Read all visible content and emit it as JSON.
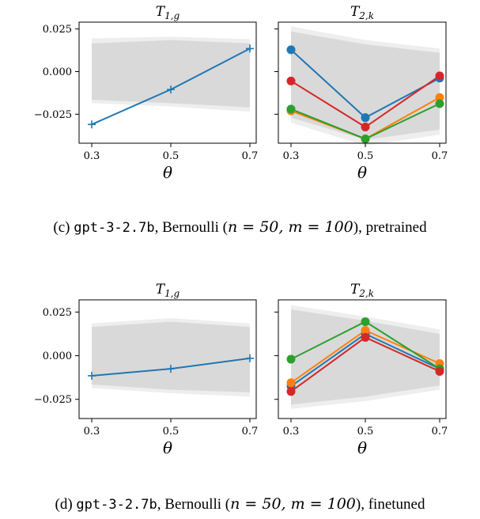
{
  "chart_data": [
    {
      "type": "line",
      "title": {
        "base": "T",
        "sub": "1,g"
      },
      "xlabel": "θ",
      "x": [
        0.3,
        0.5,
        0.7
      ],
      "xticks": [
        "0.3",
        "0.5",
        "0.7"
      ],
      "yticks": [
        0.025,
        0.0,
        -0.025
      ],
      "ytick_labels": [
        "0.025",
        "0.000",
        "−0.025"
      ],
      "ylim": [
        -0.042,
        0.029
      ],
      "y_axis_labels_visible": true,
      "band_outer": {
        "upper": [
          0.0195,
          0.0205,
          0.019
        ],
        "lower": [
          -0.0185,
          -0.0205,
          -0.0235
        ]
      },
      "band_inner": {
        "upper": [
          0.0165,
          0.0185,
          0.0165
        ],
        "lower": [
          -0.0165,
          -0.0185,
          -0.021
        ]
      },
      "series": [
        {
          "color": "#1f77b4",
          "marker": "plus",
          "values": [
            -0.031,
            -0.0105,
            0.0135
          ]
        }
      ]
    },
    {
      "type": "line",
      "title": {
        "base": "T",
        "sub": "2,k"
      },
      "xlabel": "θ",
      "x": [
        0.3,
        0.5,
        0.7
      ],
      "xticks": [
        "0.3",
        "0.5",
        "0.7"
      ],
      "yticks": [
        0.025,
        0.0,
        -0.025
      ],
      "ytick_labels": [
        "0.025",
        "0.000",
        "−0.025"
      ],
      "ylim": [
        -0.042,
        0.029
      ],
      "y_axis_labels_visible": false,
      "band_outer": {
        "upper": [
          0.0265,
          0.0185,
          0.0135
        ],
        "lower": [
          -0.03,
          -0.0435,
          -0.037
        ]
      },
      "band_inner": {
        "upper": [
          0.0235,
          0.016,
          0.011
        ],
        "lower": [
          -0.027,
          -0.04,
          -0.034
        ]
      },
      "series": [
        {
          "color": "#1f77b4",
          "marker": "circle",
          "values": [
            0.0128,
            -0.027,
            -0.0038
          ]
        },
        {
          "color": "#ff7f0e",
          "marker": "circle",
          "values": [
            -0.023,
            -0.0395,
            -0.0152
          ]
        },
        {
          "color": "#2ca02c",
          "marker": "circle",
          "values": [
            -0.022,
            -0.0395,
            -0.0188
          ]
        },
        {
          "color": "#d62728",
          "marker": "circle",
          "values": [
            -0.0055,
            -0.0325,
            -0.0025
          ]
        }
      ]
    },
    {
      "type": "line",
      "title": {
        "base": "T",
        "sub": "1,g"
      },
      "xlabel": "θ",
      "x": [
        0.3,
        0.5,
        0.7
      ],
      "xticks": [
        "0.3",
        "0.5",
        "0.7"
      ],
      "yticks": [
        0.025,
        0.0,
        -0.025
      ],
      "ytick_labels": [
        "0.025",
        "0.000",
        "−0.025"
      ],
      "ylim": [
        -0.036,
        0.032
      ],
      "y_axis_labels_visible": true,
      "band_outer": {
        "upper": [
          0.0185,
          0.0215,
          0.0185
        ],
        "lower": [
          -0.0185,
          -0.0215,
          -0.0235
        ]
      },
      "band_inner": {
        "upper": [
          0.0165,
          0.0195,
          0.0165
        ],
        "lower": [
          -0.0165,
          -0.0195,
          -0.021
        ]
      },
      "series": [
        {
          "color": "#1f77b4",
          "marker": "plus",
          "values": [
            -0.0115,
            -0.0075,
            -0.0015
          ]
        }
      ]
    },
    {
      "type": "line",
      "title": {
        "base": "T",
        "sub": "2,k"
      },
      "xlabel": "θ",
      "x": [
        0.3,
        0.5,
        0.7
      ],
      "xticks": [
        "0.3",
        "0.5",
        "0.7"
      ],
      "yticks": [
        0.025,
        0.0,
        -0.025
      ],
      "ytick_labels": [
        "0.025",
        "0.000",
        "−0.025"
      ],
      "ylim": [
        -0.036,
        0.032
      ],
      "y_axis_labels_visible": false,
      "band_outer": {
        "upper": [
          0.029,
          0.0225,
          0.015
        ],
        "lower": [
          -0.0305,
          -0.026,
          -0.0195
        ]
      },
      "band_inner": {
        "upper": [
          0.0265,
          0.02,
          0.0125
        ],
        "lower": [
          -0.028,
          -0.0235,
          -0.017
        ]
      },
      "series": [
        {
          "color": "#1f77b4",
          "marker": "circle",
          "values": [
            -0.0175,
            0.0125,
            -0.0075
          ]
        },
        {
          "color": "#ff7f0e",
          "marker": "circle",
          "values": [
            -0.0155,
            0.0145,
            -0.0045
          ]
        },
        {
          "color": "#2ca02c",
          "marker": "circle",
          "values": [
            -0.002,
            0.0195,
            -0.0075
          ]
        },
        {
          "color": "#d62728",
          "marker": "circle",
          "values": [
            -0.0205,
            0.0105,
            -0.009
          ]
        }
      ]
    }
  ],
  "captions": [
    {
      "prefix": "(c) ",
      "model": "gpt-3-2.7b",
      "dist": ", Bernoulli (",
      "math": "n = 50, m = 100",
      "suffix": "), pretrained"
    },
    {
      "prefix": "(d) ",
      "model": "gpt-3-2.7b",
      "dist": ", Bernoulli (",
      "math": "n = 50, m = 100",
      "suffix": "), finetuned"
    }
  ],
  "colors": {
    "band_outer": "#eeeeee",
    "band_inner": "#d9d9d9",
    "axes": "#000000"
  }
}
